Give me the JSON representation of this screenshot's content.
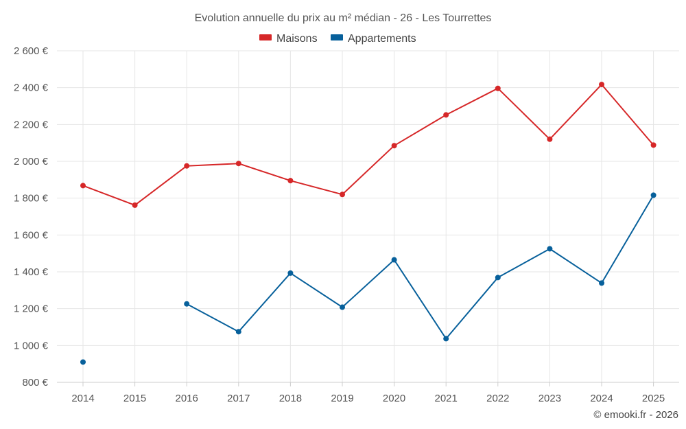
{
  "chart_data": {
    "type": "line",
    "title": "Evolution annuelle du prix au m² médian - 26 - Les Tourrettes",
    "categories": [
      "2014",
      "2015",
      "2016",
      "2017",
      "2018",
      "2019",
      "2020",
      "2021",
      "2022",
      "2023",
      "2024",
      "2025"
    ],
    "ylim": [
      800,
      2600
    ],
    "yticks": [
      800,
      1000,
      1200,
      1400,
      1600,
      1800,
      2000,
      2200,
      2400,
      2600
    ],
    "ytick_labels": [
      "800 €",
      "1 000 €",
      "1 200 €",
      "1 400 €",
      "1 600 €",
      "1 800 €",
      "2 000 €",
      "2 200 €",
      "2 400 €",
      "2 600 €"
    ],
    "grid": true,
    "legend_position": "top-center",
    "series": [
      {
        "name": "Maisons",
        "color": "#d62728",
        "values": [
          1868,
          1762,
          1975,
          1988,
          1895,
          1820,
          2085,
          2252,
          2396,
          2120,
          2417,
          2088
        ]
      },
      {
        "name": "Appartements",
        "color": "#07609b",
        "values": [
          910,
          null,
          1226,
          1075,
          1393,
          1208,
          1465,
          1037,
          1369,
          1525,
          1339,
          1816
        ]
      }
    ],
    "credit": "© emooki.fr - 2026"
  }
}
